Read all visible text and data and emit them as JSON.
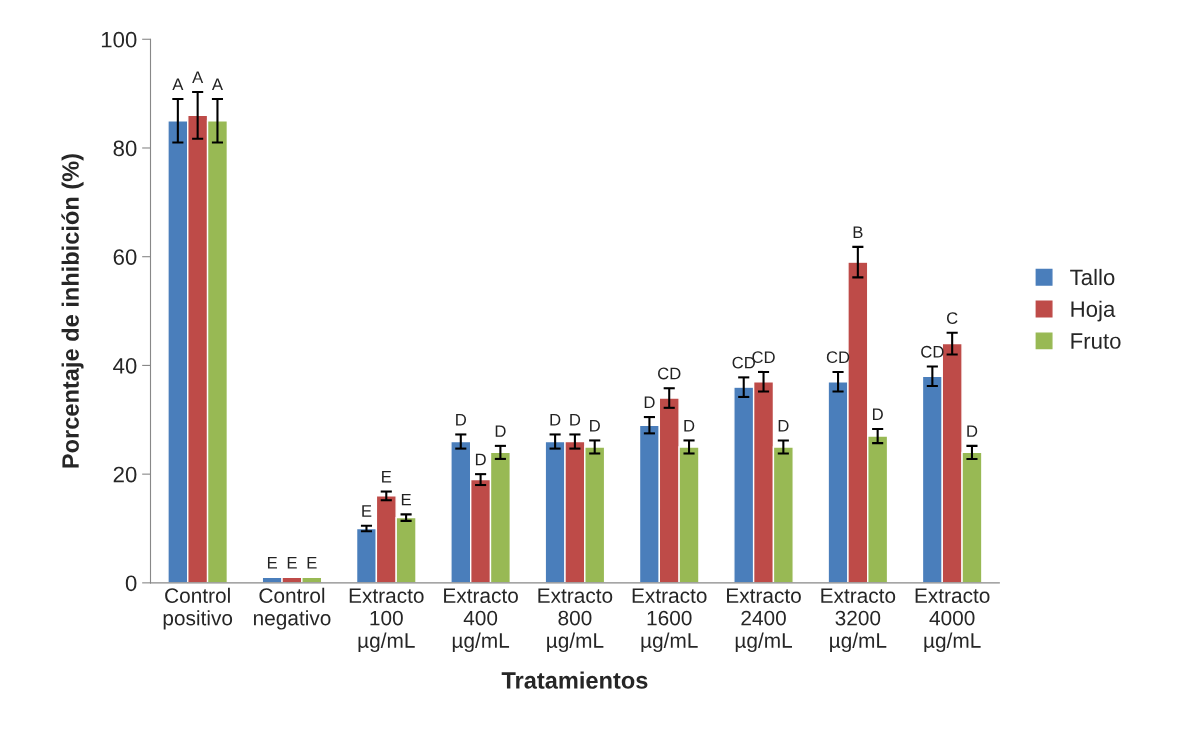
{
  "chart_data": {
    "type": "bar",
    "xlabel": "Tratamientos",
    "ylabel": "Porcentaje de inhibición (%)",
    "categories": [
      "Control\npositivo",
      "Control\nnegativo",
      "Extracto\n100\nµg/mL",
      "Extracto\n400\nµg/mL",
      "Extracto\n800\nµg/mL",
      "Extracto\n1600\nµg/mL",
      "Extracto\n2400\nµg/mL",
      "Extracto\n3200\nµg/mL",
      "Extracto\n4000\nµg/mL"
    ],
    "series": [
      {
        "name": "Tallo",
        "color": "#4a7ebb",
        "values": [
          85,
          1,
          10,
          26,
          26,
          29,
          36,
          37,
          38
        ],
        "errors": [
          4,
          null,
          0.5,
          1.3,
          1.3,
          1.5,
          1.8,
          1.8,
          1.8
        ],
        "value_labels": [
          "A",
          "E",
          "E",
          "D",
          "D",
          "D",
          "CD",
          "CD",
          "CD"
        ]
      },
      {
        "name": "Hoja",
        "color": "#be4b48",
        "values": [
          86,
          1,
          16,
          19,
          26,
          34,
          37,
          59,
          44
        ],
        "errors": [
          4.3,
          null,
          0.8,
          1,
          1.3,
          1.8,
          1.8,
          2.8,
          2
        ],
        "value_labels": [
          "A",
          "E",
          "E",
          "D",
          "D",
          "CD",
          "CD",
          "B",
          "C"
        ]
      },
      {
        "name": "Fruto",
        "color": "#98b954",
        "values": [
          85,
          1,
          12,
          24,
          25,
          25,
          25,
          27,
          24
        ],
        "errors": [
          4,
          null,
          0.6,
          1.2,
          1.2,
          1.2,
          1.2,
          1.3,
          1.2
        ],
        "value_labels": [
          "A",
          "E",
          "E",
          "D",
          "D",
          "D",
          "D",
          "D",
          "D"
        ]
      }
    ],
    "ylim": [
      0,
      100
    ],
    "yticks": [
      0,
      20,
      40,
      60,
      80,
      100
    ],
    "legend": "right",
    "grid": false
  }
}
